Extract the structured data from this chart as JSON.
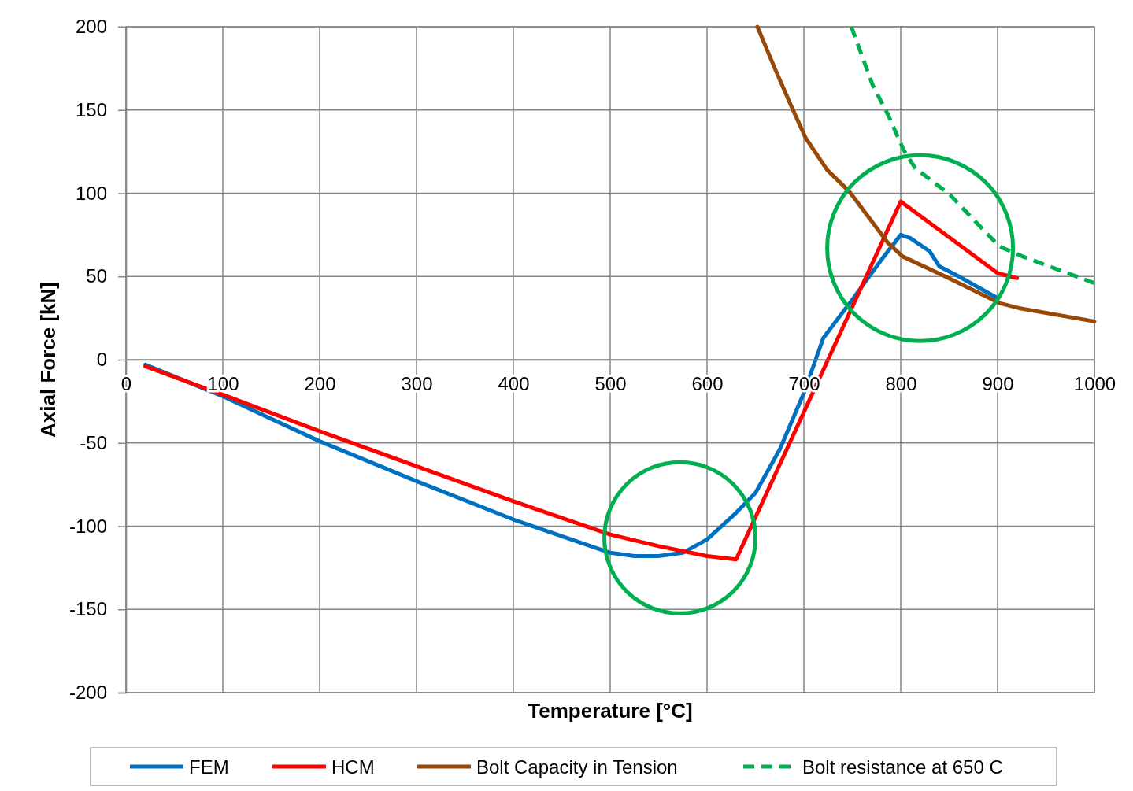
{
  "chart_data": {
    "type": "line",
    "xlabel": "Temperature [°C]",
    "ylabel": "Axial Force [kN]",
    "xlim": [
      0,
      1000
    ],
    "xticks": [
      0,
      100,
      200,
      300,
      400,
      500,
      600,
      700,
      800,
      900,
      1000
    ],
    "ylim": [
      -200,
      200
    ],
    "yticks": [
      -200,
      -150,
      -100,
      -50,
      0,
      50,
      100,
      150,
      200
    ],
    "grid": true,
    "legend": "bottom",
    "marker": "none",
    "series": [
      {
        "name": "FEM",
        "color": "#0070c0",
        "x": [
          20,
          100,
          200,
          300,
          400,
          500,
          525,
          550,
          575,
          600,
          630,
          650,
          675,
          700,
          720,
          750,
          780,
          800,
          810,
          830,
          840,
          860,
          900
        ],
        "values": [
          -3,
          -22,
          -49,
          -73,
          -96,
          -116,
          -118,
          -118,
          -116,
          -108,
          -92,
          -80,
          -54,
          -20,
          13,
          36,
          60,
          75,
          73,
          65,
          56,
          50,
          37
        ]
      },
      {
        "name": "HCM",
        "color": "#ff0000",
        "x": [
          20,
          100,
          200,
          300,
          400,
          500,
          550,
          600,
          630,
          800,
          900,
          920
        ],
        "values": [
          -4,
          -21,
          -43,
          -64,
          -85,
          -105,
          -112,
          -118,
          -120,
          95,
          52,
          49
        ]
      },
      {
        "name": "Bolt Capacity in Tension",
        "color": "#984807",
        "x": [
          652,
          670,
          688,
          702,
          724,
          747,
          787,
          802,
          846,
          902,
          922,
          1000
        ],
        "values": [
          200,
          175,
          151,
          133,
          114,
          101,
          70,
          62,
          50,
          34,
          31,
          23
        ]
      },
      {
        "name": "Bolt resistance at 650 C",
        "color": "#00b050",
        "line_style": "dashed",
        "x": [
          749,
          771,
          787,
          803,
          815,
          851,
          882,
          902,
          926,
          1000
        ],
        "values": [
          200,
          165,
          147,
          126,
          115,
          99,
          80,
          68,
          62,
          46
        ]
      }
    ]
  }
}
